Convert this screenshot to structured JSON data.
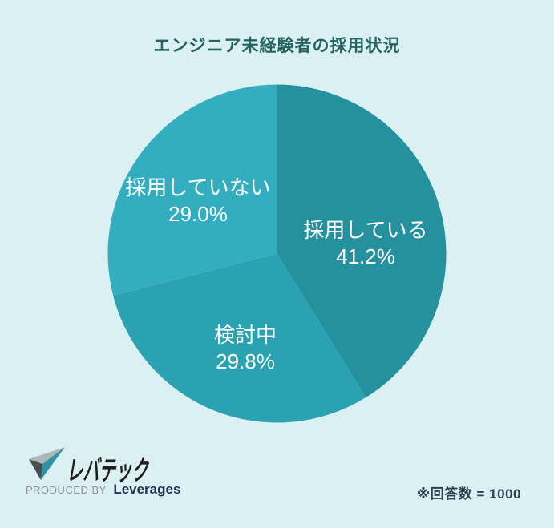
{
  "title": "エンジニア未経験者の採用状況",
  "chart_data": {
    "type": "pie",
    "title": "エンジニア未経験者の採用状況",
    "start_angle": "top",
    "direction": "clockwise",
    "label_color": "#FFFFFF",
    "slices": [
      {
        "label": "採用している",
        "value": 41.2,
        "display": "41.2%",
        "color": "#25909E"
      },
      {
        "label": "検討中",
        "value": 29.8,
        "display": "29.8%",
        "color": "#2BA2B2"
      },
      {
        "label": "採用していない",
        "value": 29.0,
        "display": "29.0%",
        "color": "#33ADC0"
      }
    ]
  },
  "footer": {
    "note": "※回答数 = 1000",
    "logo": {
      "brand": "レバテック",
      "produced_by": "PRODUCED BY",
      "company": "Leverages"
    }
  },
  "colors": {
    "background": "#DBF0F3",
    "title": "#266460",
    "note": "#2D3F50"
  }
}
